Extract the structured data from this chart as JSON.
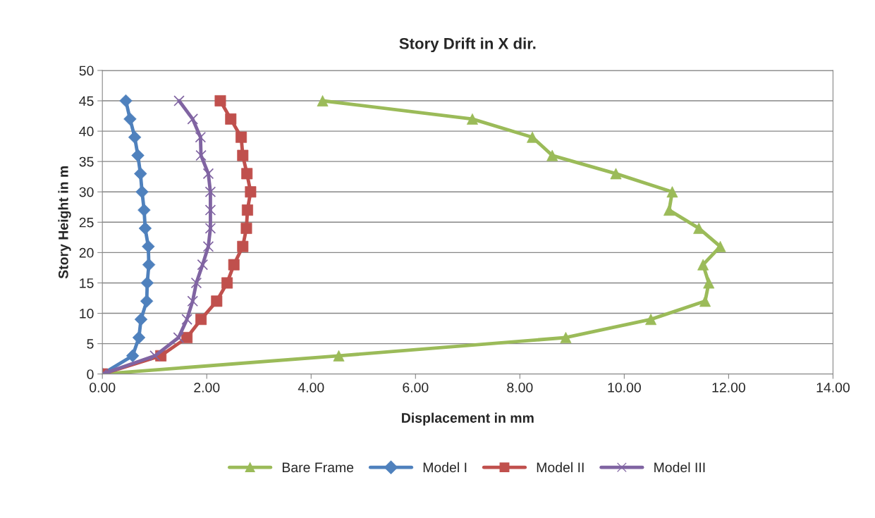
{
  "chart_data": {
    "type": "line",
    "title": "Story Drift in X dir.",
    "xlabel": "Displacement in mm",
    "ylabel": "Story Height in m",
    "xlim": [
      0,
      14
    ],
    "ylim": [
      0,
      50
    ],
    "xticks": [
      {
        "value": 0,
        "label": "0.00"
      },
      {
        "value": 2,
        "label": "2.00"
      },
      {
        "value": 4,
        "label": "4.00"
      },
      {
        "value": 6,
        "label": "6.00"
      },
      {
        "value": 8,
        "label": "8.00"
      },
      {
        "value": 10,
        "label": "10.00"
      },
      {
        "value": 12,
        "label": "12.00"
      },
      {
        "value": 14,
        "label": "14.00"
      }
    ],
    "yticks": [
      0,
      5,
      10,
      15,
      20,
      25,
      30,
      35,
      40,
      45,
      50
    ],
    "grid": "y",
    "legend": "bottom",
    "line_style": "solid",
    "series": [
      {
        "name": "Bare Frame",
        "color": "#9bbb59",
        "marker": "triangle",
        "x": [
          0,
          4.53,
          8.88,
          10.51,
          11.55,
          11.62,
          11.51,
          11.84,
          11.43,
          10.86,
          10.92,
          9.84,
          8.62,
          8.24,
          7.09,
          4.22
        ],
        "values": [
          0,
          3,
          6,
          9,
          12,
          15,
          18,
          21,
          24,
          27,
          30,
          33,
          36,
          39,
          42,
          45
        ]
      },
      {
        "name": "Model I",
        "color": "#4f81bd",
        "marker": "diamond",
        "x": [
          0,
          0.58,
          0.7,
          0.74,
          0.85,
          0.86,
          0.89,
          0.88,
          0.82,
          0.8,
          0.76,
          0.73,
          0.68,
          0.62,
          0.53,
          0.45
        ],
        "values": [
          0,
          3,
          6,
          9,
          12,
          15,
          18,
          21,
          24,
          27,
          30,
          33,
          36,
          39,
          42,
          45
        ]
      },
      {
        "name": "Model II",
        "color": "#c0504d",
        "marker": "square",
        "x": [
          0,
          1.12,
          1.62,
          1.89,
          2.19,
          2.39,
          2.52,
          2.69,
          2.76,
          2.78,
          2.84,
          2.77,
          2.69,
          2.66,
          2.46,
          2.26
        ],
        "values": [
          0,
          3,
          6,
          9,
          12,
          15,
          18,
          21,
          24,
          27,
          30,
          33,
          36,
          39,
          42,
          45
        ]
      },
      {
        "name": "Model III",
        "color": "#8064a2",
        "marker": "cross",
        "x": [
          0,
          1.01,
          1.46,
          1.62,
          1.73,
          1.8,
          1.92,
          2.03,
          2.07,
          2.07,
          2.07,
          2.03,
          1.89,
          1.88,
          1.73,
          1.47
        ],
        "values": [
          0,
          3,
          6,
          9,
          12,
          15,
          18,
          21,
          24,
          27,
          30,
          33,
          36,
          39,
          42,
          45
        ]
      }
    ]
  }
}
